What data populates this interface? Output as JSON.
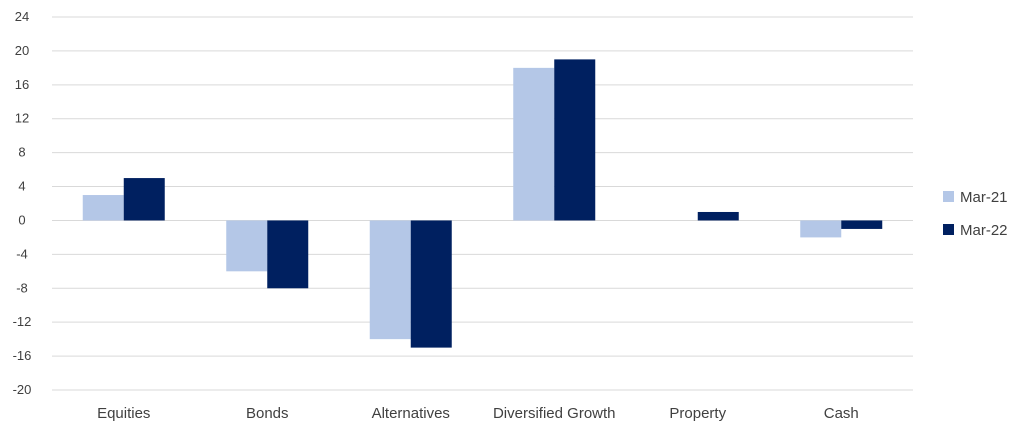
{
  "chart_data": {
    "type": "bar",
    "title": "",
    "xlabel": "",
    "ylabel": "",
    "categories": [
      "Equities",
      "Bonds",
      "Alternatives",
      "Diversified Growth",
      "Property",
      "Cash"
    ],
    "series": [
      {
        "name": "Mar-21",
        "values": [
          3,
          -6,
          -14,
          18,
          0,
          -2
        ],
        "color": "#b4c7e7"
      },
      {
        "name": "Mar-22",
        "values": [
          5,
          -8,
          -15,
          19,
          1,
          -1
        ],
        "color": "#002060"
      }
    ],
    "ylim": [
      -20,
      24
    ],
    "yticks": [
      24,
      20,
      16,
      12,
      8,
      4,
      0,
      -4,
      -8,
      -12,
      -16,
      -20
    ],
    "ytick_labels": [
      "24",
      "20",
      "16",
      "12",
      "8",
      "4",
      "0",
      "-4",
      "-8",
      "-12",
      "-16",
      "-20"
    ],
    "grid": true,
    "legend_position": "right",
    "gridline_color": "#d9d9d9",
    "text_color": "#404040"
  }
}
